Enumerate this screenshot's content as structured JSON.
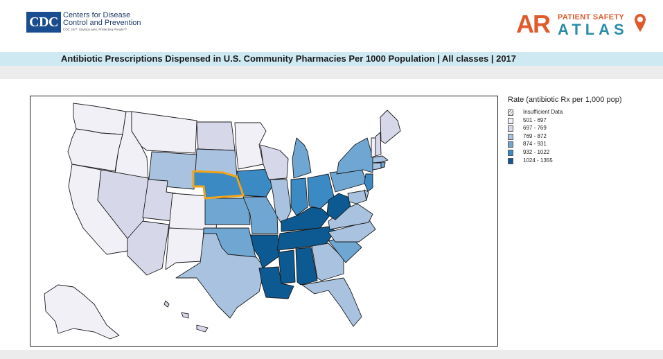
{
  "header": {
    "cdc_logo_text": "CDC",
    "cdc_line1": "Centers for Disease",
    "cdc_line2": "Control and Prevention",
    "cdc_tagline": "CDC 24/7: Saving Lives, Protecting People™",
    "ar_logo_big": "AR",
    "ar_logo_small": "PATIENT SAFETY",
    "ar_logo_atlas": "ATLAS"
  },
  "title": "Antibiotic Prescriptions Dispensed in U.S. Community Pharmacies Per 1000 Population |  All classes | 2017",
  "legend": {
    "title": "Rate (antibiotic Rx per 1,000 pop)",
    "items": [
      {
        "label": "Insufficient Data",
        "color": "#ffffff",
        "hatch": true
      },
      {
        "label": "501 - 697",
        "color": "#f2f0f7"
      },
      {
        "label": "697 - 769",
        "color": "#d6d8ea"
      },
      {
        "label": "769 - 872",
        "color": "#a8c2df"
      },
      {
        "label": "874 - 931",
        "color": "#6fa6d2"
      },
      {
        "label": "932 - 1022",
        "color": "#3b8ac4"
      },
      {
        "label": "1024 - 1355",
        "color": "#0d5a92"
      }
    ]
  },
  "map": {
    "selected_state": "Nebraska",
    "highlight_color": "#f0a41c",
    "states": [
      {
        "name": "Washington",
        "class": 1
      },
      {
        "name": "Oregon",
        "class": 1
      },
      {
        "name": "California",
        "class": 1
      },
      {
        "name": "Idaho",
        "class": 1
      },
      {
        "name": "Nevada",
        "class": 2
      },
      {
        "name": "Montana",
        "class": 1
      },
      {
        "name": "Wyoming",
        "class": 3
      },
      {
        "name": "Utah",
        "class": 2
      },
      {
        "name": "Colorado",
        "class": 1
      },
      {
        "name": "Arizona",
        "class": 2
      },
      {
        "name": "New Mexico",
        "class": 1
      },
      {
        "name": "North Dakota",
        "class": 2
      },
      {
        "name": "South Dakota",
        "class": 3
      },
      {
        "name": "Nebraska",
        "class": 5
      },
      {
        "name": "Kansas",
        "class": 4
      },
      {
        "name": "Oklahoma",
        "class": 4
      },
      {
        "name": "Texas",
        "class": 3
      },
      {
        "name": "Minnesota",
        "class": 1
      },
      {
        "name": "Iowa",
        "class": 5
      },
      {
        "name": "Missouri",
        "class": 4
      },
      {
        "name": "Arkansas",
        "class": 6
      },
      {
        "name": "Louisiana",
        "class": 6
      },
      {
        "name": "Wisconsin",
        "class": 2
      },
      {
        "name": "Illinois",
        "class": 3
      },
      {
        "name": "Michigan",
        "class": 4
      },
      {
        "name": "Indiana",
        "class": 5
      },
      {
        "name": "Ohio",
        "class": 5
      },
      {
        "name": "Kentucky",
        "class": 6
      },
      {
        "name": "Tennessee",
        "class": 6
      },
      {
        "name": "Mississippi",
        "class": 6
      },
      {
        "name": "Alabama",
        "class": 6
      },
      {
        "name": "Georgia",
        "class": 3
      },
      {
        "name": "Florida",
        "class": 3
      },
      {
        "name": "South Carolina",
        "class": 4
      },
      {
        "name": "North Carolina",
        "class": 3
      },
      {
        "name": "Virginia",
        "class": 3
      },
      {
        "name": "West Virginia",
        "class": 6
      },
      {
        "name": "Pennsylvania",
        "class": 4
      },
      {
        "name": "New York",
        "class": 4
      },
      {
        "name": "New Jersey",
        "class": 5
      },
      {
        "name": "Delaware",
        "class": 3
      },
      {
        "name": "Maryland",
        "class": 3
      },
      {
        "name": "Connecticut",
        "class": 3
      },
      {
        "name": "Rhode Island",
        "class": 4
      },
      {
        "name": "Massachusetts",
        "class": 3
      },
      {
        "name": "Vermont",
        "class": 1
      },
      {
        "name": "New Hampshire",
        "class": 2
      },
      {
        "name": "Maine",
        "class": 2
      },
      {
        "name": "Alaska",
        "class": 1
      },
      {
        "name": "Hawaii",
        "class": 2
      }
    ]
  }
}
